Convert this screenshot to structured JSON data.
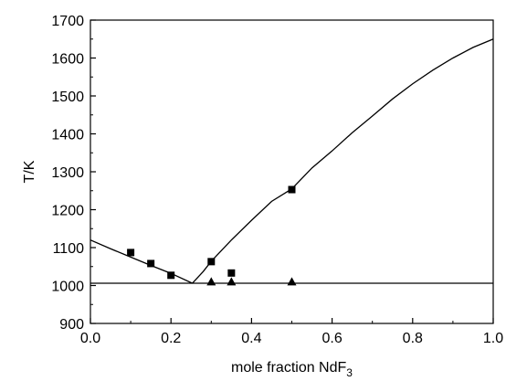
{
  "chart_data": {
    "type": "line",
    "title": "",
    "xlabel_main": "mole fraction NdF",
    "xlabel_sub": "3",
    "ylabel": "T/K",
    "xlim": [
      0.0,
      1.0
    ],
    "ylim": [
      900,
      1700
    ],
    "x_ticks": [
      0.0,
      0.2,
      0.4,
      0.6,
      0.8,
      1.0
    ],
    "x_tick_labels": [
      "0.0",
      "0.2",
      "0.4",
      "0.6",
      "0.8",
      "1.0"
    ],
    "y_ticks": [
      900,
      1000,
      1100,
      1200,
      1300,
      1400,
      1500,
      1600,
      1700
    ],
    "y_tick_labels": [
      "900",
      "1000",
      "1100",
      "1200",
      "1300",
      "1400",
      "1500",
      "1600",
      "1700"
    ],
    "grid": false,
    "series": [
      {
        "kind": "line",
        "points": [
          [
            0.0,
            1120
          ],
          [
            0.05,
            1097
          ],
          [
            0.1,
            1075
          ],
          [
            0.15,
            1053
          ],
          [
            0.2,
            1032
          ],
          [
            0.253,
            1006
          ]
        ]
      },
      {
        "kind": "line",
        "points": [
          [
            0.253,
            1006
          ],
          [
            0.28,
            1037
          ],
          [
            0.3,
            1064
          ],
          [
            0.35,
            1120
          ],
          [
            0.4,
            1172
          ],
          [
            0.45,
            1222
          ],
          [
            0.5,
            1255
          ],
          [
            0.55,
            1310
          ],
          [
            0.6,
            1355
          ],
          [
            0.65,
            1403
          ],
          [
            0.7,
            1447
          ],
          [
            0.75,
            1492
          ],
          [
            0.8,
            1532
          ],
          [
            0.85,
            1568
          ],
          [
            0.9,
            1600
          ],
          [
            0.95,
            1628
          ],
          [
            1.0,
            1650
          ]
        ]
      },
      {
        "kind": "line",
        "points": [
          [
            0.0,
            1006
          ],
          [
            1.0,
            1006
          ]
        ]
      },
      {
        "kind": "scatter",
        "marker": "square",
        "points": [
          [
            0.1,
            1087
          ],
          [
            0.15,
            1058
          ],
          [
            0.2,
            1027
          ],
          [
            0.3,
            1063
          ],
          [
            0.35,
            1033
          ],
          [
            0.5,
            1253
          ]
        ]
      },
      {
        "kind": "scatter",
        "marker": "triangle",
        "points": [
          [
            0.3,
            1010
          ],
          [
            0.35,
            1010
          ],
          [
            0.5,
            1010
          ]
        ]
      }
    ]
  }
}
